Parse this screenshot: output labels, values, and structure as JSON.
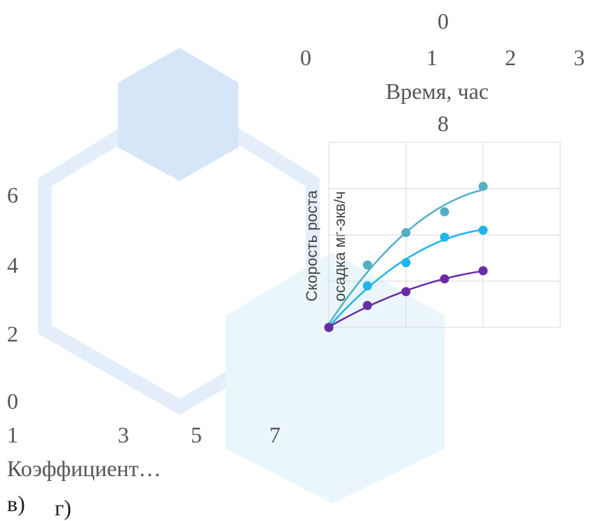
{
  "chart_data": [
    {
      "type": "line",
      "panel": "г)",
      "title": "",
      "ylabel_line1": "Скорость роста",
      "ylabel_line2": "осадка мг-экв/ч",
      "xlabel": "Время, час",
      "x": [
        0,
        0.5,
        1,
        1.5,
        2
      ],
      "xlim": [
        0,
        3
      ],
      "ylim": [
        0,
        8
      ],
      "grid": true,
      "series_colors": [
        "#52AFC4",
        "#1FB5E8",
        "#6A2CA5"
      ],
      "series": [
        {
          "values": [
            0,
            2.7,
            4.1,
            5.0,
            6.1
          ]
        },
        {
          "values": [
            0,
            1.8,
            2.8,
            3.9,
            4.2
          ]
        },
        {
          "values": [
            0,
            0.95,
            1.55,
            2.1,
            2.45
          ]
        }
      ],
      "visible_tick_labels": {
        "top_value": "0",
        "x_ticks": [
          "0",
          "1",
          "2",
          "3"
        ],
        "y_top": "8"
      }
    },
    {
      "type": "line",
      "panel": "в)",
      "xlabel": "Коэффициент…",
      "y_ticks": [
        "0",
        "2",
        "4",
        "6"
      ],
      "x_ticks": [
        "1",
        "3",
        "5",
        "7"
      ],
      "series": []
    }
  ],
  "labels": {
    "panel_v": "в)",
    "panel_g": "г)"
  },
  "background": {
    "hex_fill": "#D6E6F8",
    "hex_outline": "#E3EEFA",
    "hex_light": "#EAF6FB"
  }
}
